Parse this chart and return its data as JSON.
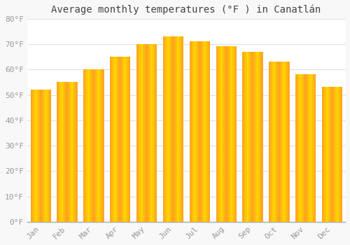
{
  "months": [
    "Jan",
    "Feb",
    "Mar",
    "Apr",
    "May",
    "Jun",
    "Jul",
    "Aug",
    "Sep",
    "Oct",
    "Nov",
    "Dec"
  ],
  "values": [
    52,
    55,
    60,
    65,
    70,
    73,
    71,
    69,
    67,
    63,
    58,
    53
  ],
  "title": "Average monthly temperatures (°F ) in Canatlán",
  "bar_color_center": "#FFD700",
  "bar_color_edge": "#FFA020",
  "ylim": [
    0,
    80
  ],
  "ytick_step": 10,
  "background_color": "#F8F8F8",
  "plot_bg_color": "#FFFFFF",
  "grid_color": "#E0E0E0",
  "title_fontsize": 10,
  "tick_fontsize": 8,
  "tick_color": "#999999",
  "spine_color": "#AAAAAA"
}
